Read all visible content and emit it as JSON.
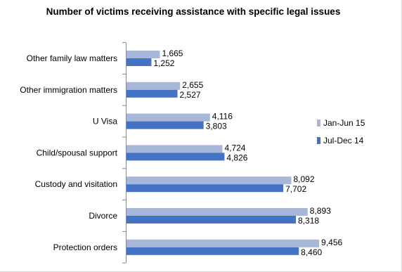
{
  "chart_data": {
    "type": "bar",
    "orientation": "horizontal",
    "title": "Number of victims receiving assistance with specific legal issues",
    "categories": [
      "Other family law matters",
      "Other immigration matters",
      "U Visa",
      "Child/spousal support",
      "Custody and visitation",
      "Divorce",
      "Protection orders"
    ],
    "series": [
      {
        "name": "Jan-Jun 15",
        "color": "#a7b7da",
        "values": [
          1665,
          2655,
          4116,
          4724,
          8092,
          8893,
          9456
        ],
        "labels": [
          "1,665",
          "2,655",
          "4,116",
          "4,724",
          "8,092",
          "8,893",
          "9,456"
        ]
      },
      {
        "name": "Jul-Dec 14",
        "color": "#4472c4",
        "values": [
          1252,
          2527,
          3803,
          4826,
          7702,
          8318,
          8460
        ],
        "labels": [
          "1,252",
          "2,527",
          "3,803",
          "4,826",
          "7,702",
          "8,318",
          "8,460"
        ]
      }
    ],
    "xlim": [
      0,
      10000
    ],
    "grid": false,
    "legend_position": "right"
  }
}
